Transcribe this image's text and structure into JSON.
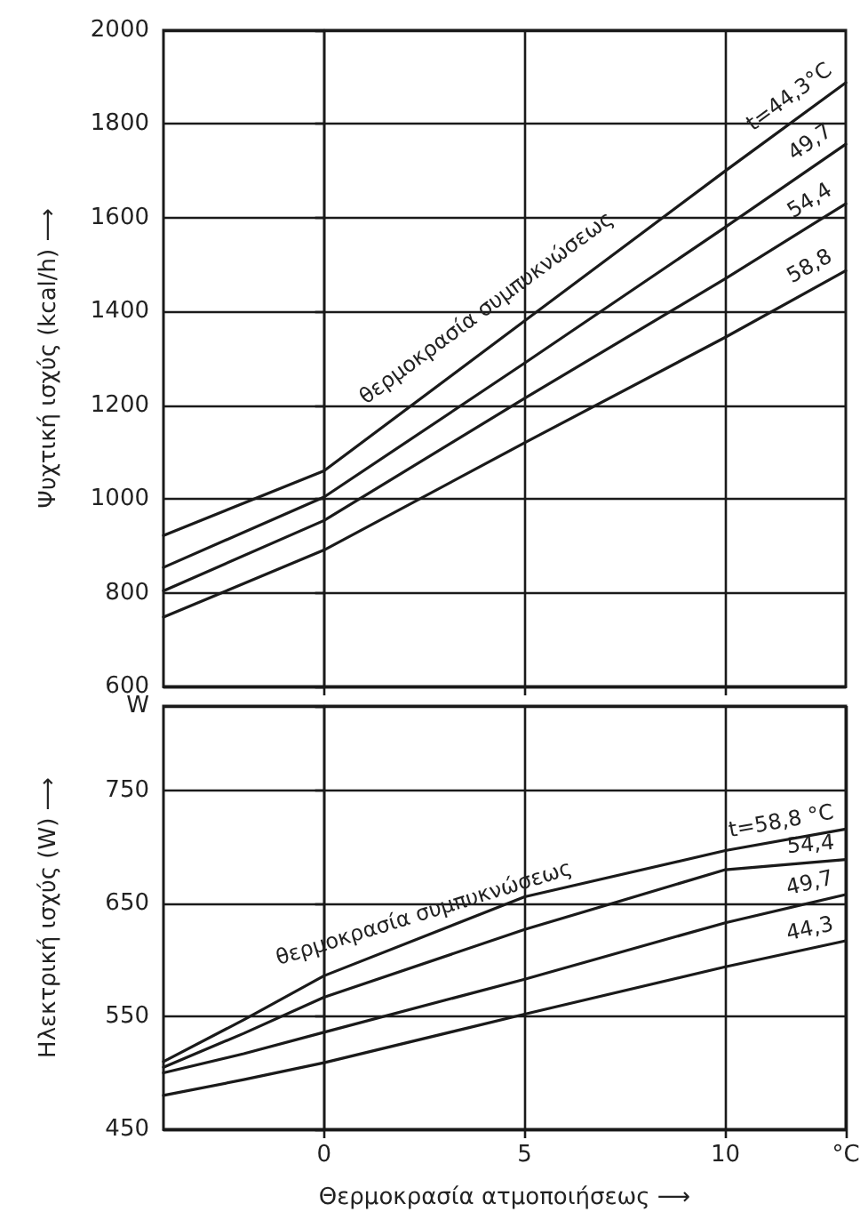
{
  "chart_data": [
    {
      "type": "line",
      "ylabel": "Ψυχτική ισχύς (kcal/h) ⟶",
      "annotations": [
        "θερμοκρασία συμπυκνώσεως"
      ],
      "xlim": [
        -4,
        13
      ],
      "xticks": [
        0,
        5,
        10
      ],
      "ylim": [
        600,
        2000
      ],
      "yticks": [
        600,
        800,
        1000,
        1200,
        1400,
        1600,
        1800,
        2000
      ],
      "tick_labels": "y",
      "grid": true,
      "marker": "none",
      "x": [
        -4,
        0,
        5,
        10,
        13
      ],
      "series": [
        {
          "name": "t=44,3°C",
          "color": "#1a1a1a",
          "values": [
            922,
            1060,
            1380,
            1700,
            1888
          ]
        },
        {
          "name": "49,7",
          "color": "#1a1a1a",
          "values": [
            854,
            1004,
            1290,
            1580,
            1757
          ]
        },
        {
          "name": "54,4",
          "color": "#1a1a1a",
          "values": [
            804,
            954,
            1215,
            1470,
            1630
          ]
        },
        {
          "name": "58,8",
          "color": "#1a1a1a",
          "values": [
            748,
            891,
            1120,
            1345,
            1487
          ]
        }
      ]
    },
    {
      "type": "line",
      "ylabel": "Ηλεκτρική ισχύς (W) ⟶",
      "xlabel": "Θερμοκρασία ατμοποιήσεως ⟶",
      "annotations": [
        "θερμοκρασία συμπυκνώσεως"
      ],
      "xlim": [
        -4,
        13
      ],
      "xticks": [
        0,
        5,
        10,
        {
          "value": 13,
          "label": "°C"
        }
      ],
      "ylim": [
        450,
        825
      ],
      "yticks": [
        450,
        550,
        650,
        750,
        {
          "value": 825,
          "label": "W"
        }
      ],
      "grid": true,
      "marker": "none",
      "x": [
        -4,
        -2,
        0,
        5,
        10,
        13
      ],
      "series": [
        {
          "name": "t=58,8 °C",
          "color": "#1a1a1a",
          "values": [
            510,
            547,
            586,
            656,
            697,
            716
          ]
        },
        {
          "name": "54,4",
          "color": "#1a1a1a",
          "values": [
            505,
            535,
            567,
            627,
            680,
            689
          ]
        },
        {
          "name": "49,7",
          "color": "#1a1a1a",
          "values": [
            500,
            517,
            536,
            583,
            633,
            658
          ]
        },
        {
          "name": "44,3",
          "color": "#1a1a1a",
          "values": [
            480,
            494,
            509,
            552,
            594,
            617
          ]
        }
      ]
    }
  ]
}
